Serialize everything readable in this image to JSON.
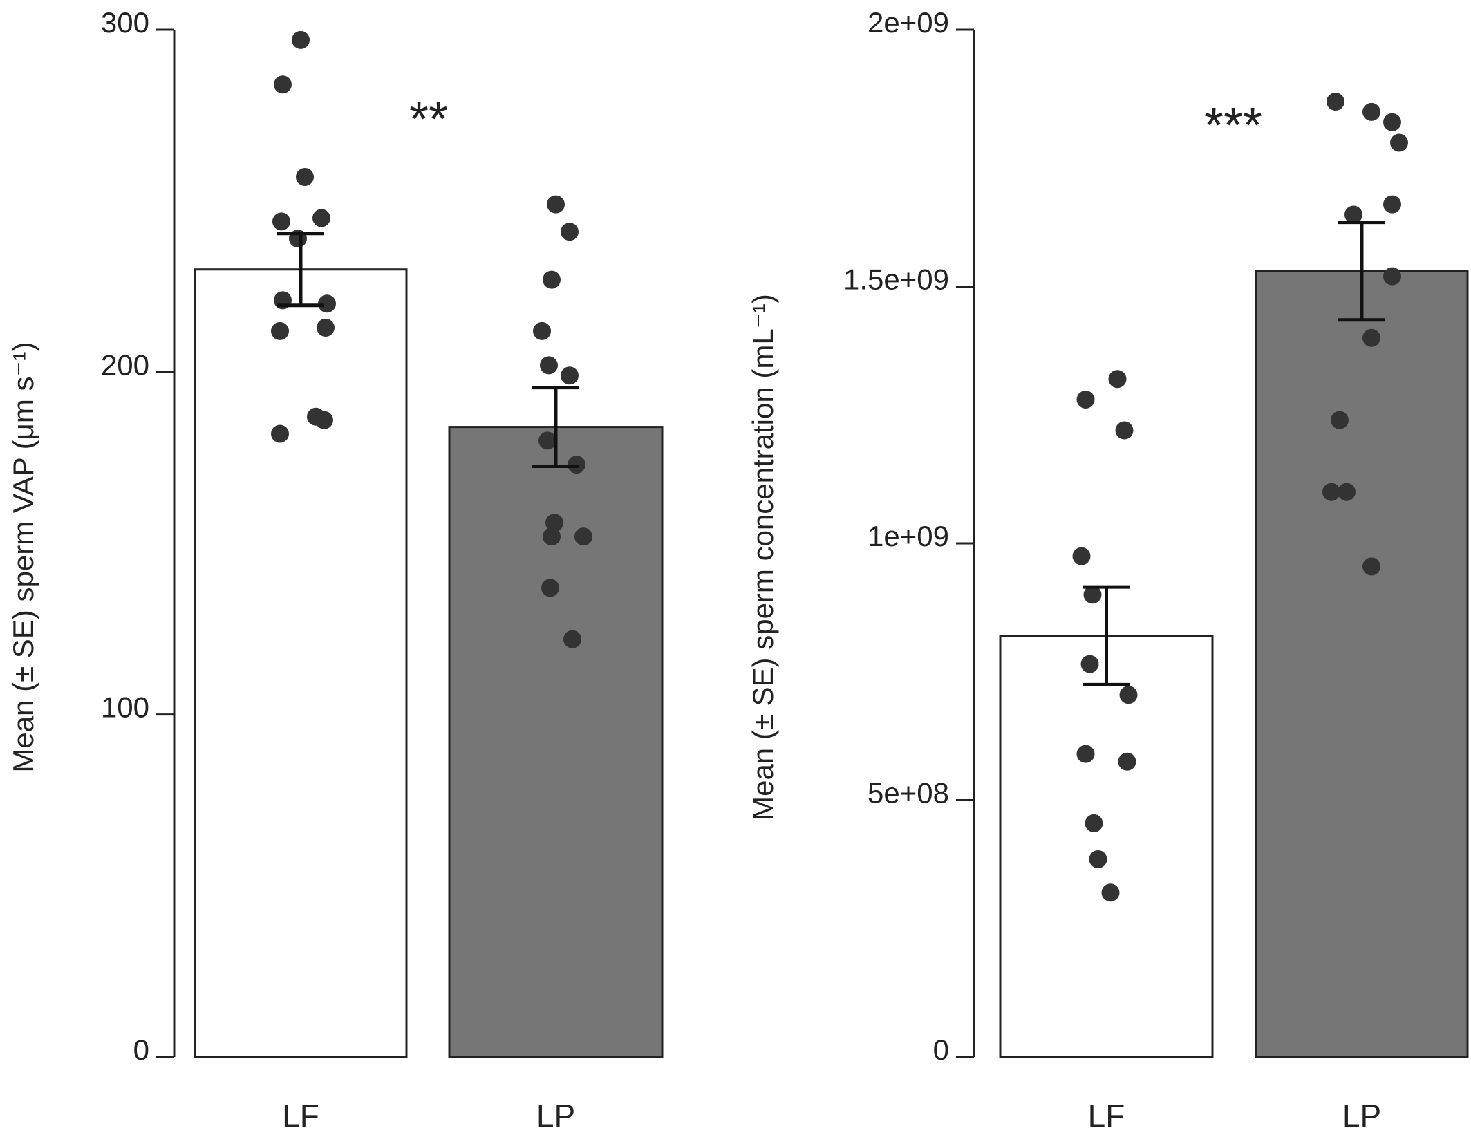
{
  "chart_data": [
    {
      "type": "bar",
      "categories": [
        "LF",
        "LP"
      ],
      "values": [
        230,
        184
      ],
      "se": [
        10.5,
        11.5
      ],
      "ylabel": "Mean (± SE) sperm VAP (μm s⁻¹)",
      "ylim": [
        0,
        300
      ],
      "yticks": [
        0,
        100,
        200,
        300
      ],
      "ytick_labels": [
        "0",
        "100",
        "200",
        "300"
      ],
      "significance": "**",
      "bar_colors": [
        "#ffffff",
        "#767676"
      ],
      "grid": false,
      "points": [
        {
          "category": "LF",
          "values": [
            297,
            284,
            257,
            245,
            244,
            239,
            221,
            220,
            213,
            212,
            187,
            186,
            182
          ]
        },
        {
          "category": "LP",
          "values": [
            249,
            241,
            227,
            212,
            202,
            199,
            180,
            173,
            156,
            152,
            152,
            137,
            122
          ]
        }
      ]
    },
    {
      "type": "bar",
      "categories": [
        "LF",
        "LP"
      ],
      "values": [
        820000000,
        1530000000
      ],
      "se": [
        95000000,
        95000000
      ],
      "ylabel": "Mean (± SE) sperm concentration (mL⁻¹)",
      "ylim": [
        0,
        2000000000
      ],
      "yticks": [
        0,
        500000000,
        1000000000,
        1500000000,
        2000000000
      ],
      "ytick_labels": [
        "0",
        "5e+08",
        "1e+09",
        "1.5e+09",
        "2e+09"
      ],
      "significance": "***",
      "bar_colors": [
        "#ffffff",
        "#767676"
      ],
      "grid": false,
      "points": [
        {
          "category": "LF",
          "values": [
            1320000000,
            1280000000,
            1220000000,
            975000000,
            900000000,
            765000000,
            705000000,
            590000000,
            575000000,
            455000000,
            385000000,
            320000000
          ]
        },
        {
          "category": "LP",
          "values": [
            1860000000,
            1840000000,
            1820000000,
            1780000000,
            1660000000,
            1640000000,
            1520000000,
            1400000000,
            1240000000,
            1100000000,
            1100000000,
            955000000
          ]
        }
      ]
    }
  ]
}
